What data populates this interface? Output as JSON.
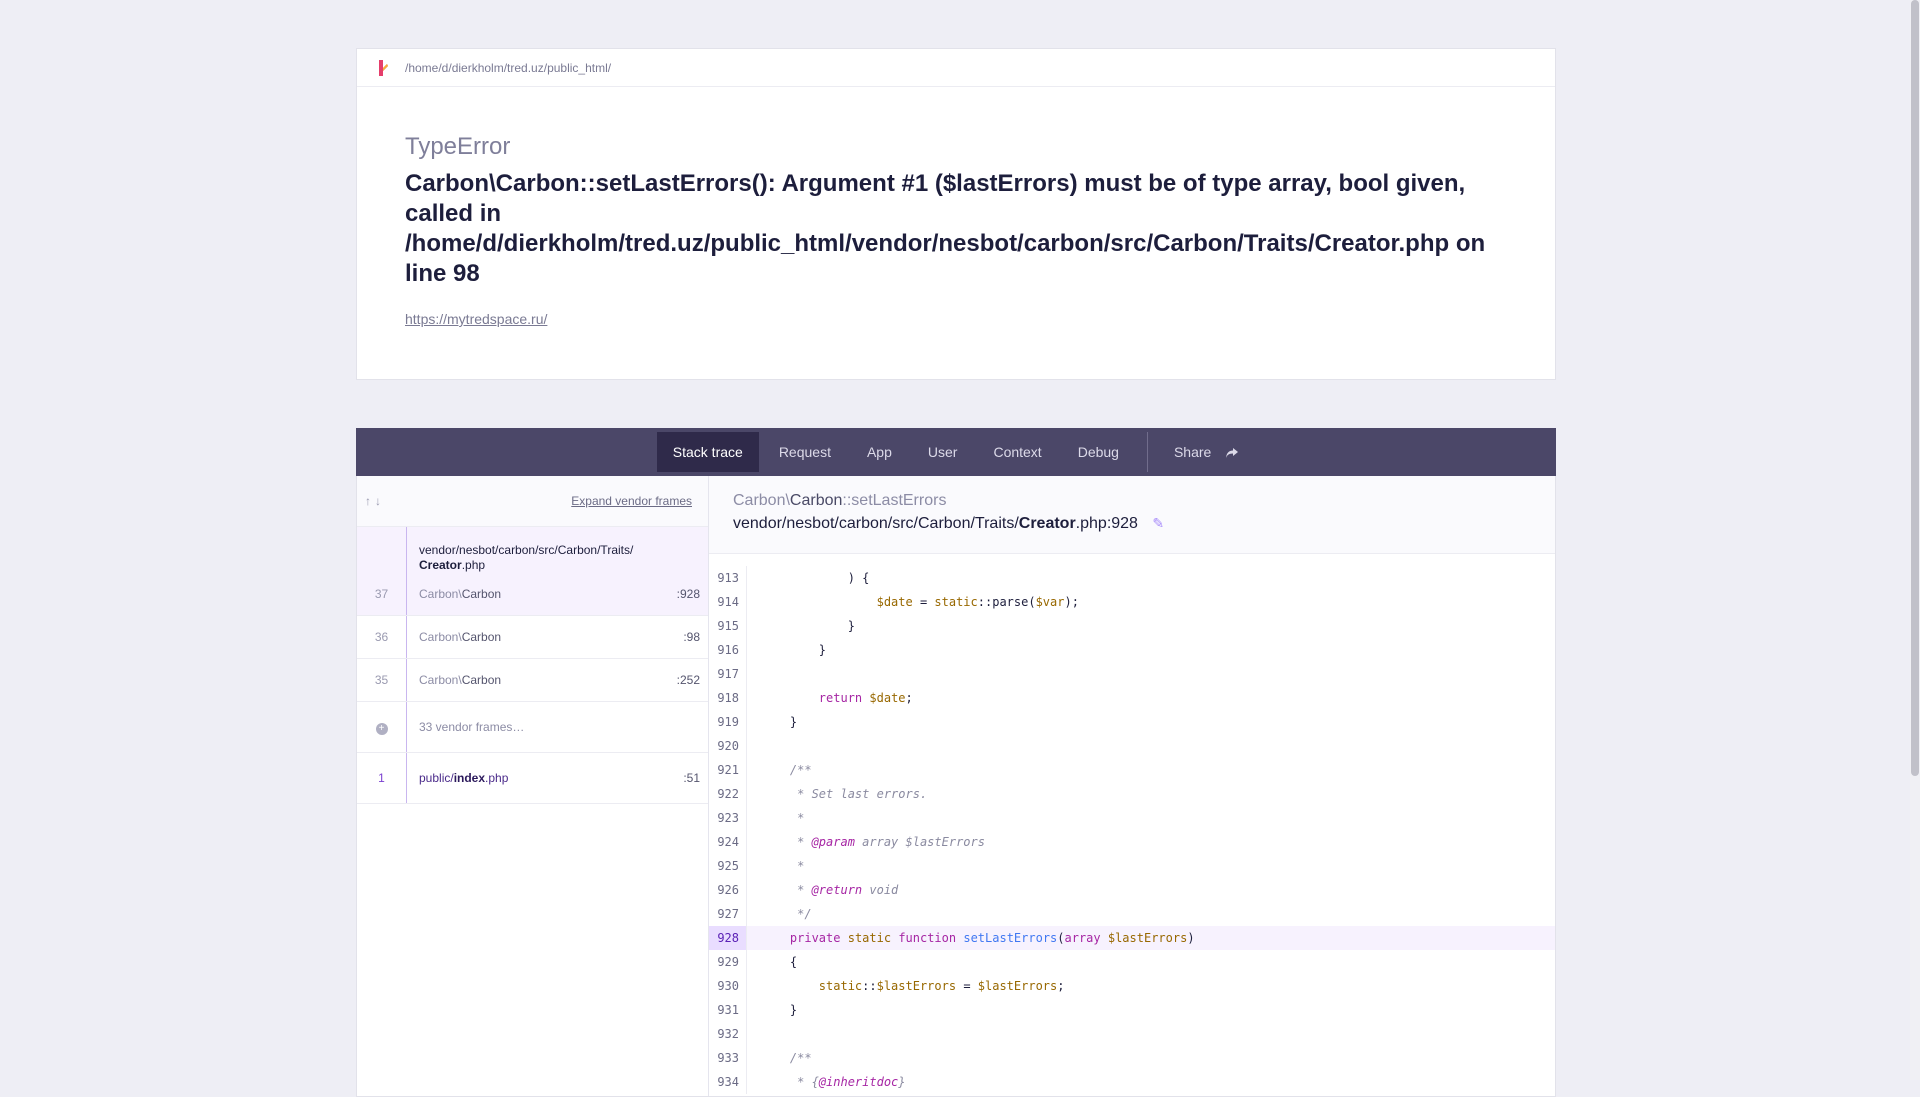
{
  "header": {
    "path": "/home/d/dierkholm/tred.uz/public_html/",
    "exception_class": "TypeError",
    "message": "Carbon\\Carbon::setLastErrors(): Argument #1 ($lastErrors) must be of type array, bool given, called in /home/d/dierkholm/tred.uz/public_html/vendor/nesbot/carbon/src/Carbon/Traits/Creator.php on line 98",
    "url": "https://mytredspace.ru/"
  },
  "tabs": {
    "stack_trace": "Stack trace",
    "request": "Request",
    "app": "App",
    "user": "User",
    "context": "Context",
    "debug": "Debug",
    "share": "Share"
  },
  "frames_panel": {
    "expand_label": "Expand vendor frames",
    "frames": [
      {
        "num": "37",
        "file_prefix": "vendor/nesbot/carbon/src/Carbon/Traits/",
        "file_name": "Creator",
        "file_ext": ".php",
        "class_prefix": "Carbon\\",
        "class_name": "Carbon",
        "line": ":928"
      },
      {
        "num": "36",
        "class_prefix": "Carbon\\",
        "class_name": "Carbon",
        "line": ":98"
      },
      {
        "num": "35",
        "class_prefix": "Carbon\\",
        "class_name": "Carbon",
        "line": ":252"
      }
    ],
    "vendor_frames_label": "33 vendor frames…",
    "app_frame": {
      "num": "1",
      "file_prefix": "public/",
      "file_name": "index",
      "file_ext": ".php",
      "line": ":51"
    }
  },
  "code_panel": {
    "class_prefix": "Carbon\\",
    "class_name": "Carbon",
    "method": "::setLastErrors",
    "file_prefix": "vendor/nesbot/carbon/src/Carbon/Traits/",
    "file_name": "Creator",
    "file_suffix": ".php:928",
    "line_numbers": [
      "913",
      "914",
      "915",
      "916",
      "917",
      "918",
      "919",
      "920",
      "921",
      "922",
      "923",
      "924",
      "925",
      "926",
      "927",
      "928",
      "929",
      "930",
      "931",
      "932",
      "933",
      "934"
    ],
    "highlighted_line": "928"
  },
  "colors": {
    "background": "#eeeef5",
    "tab_bar": "#4b4768",
    "tab_active": "#2f2a4a",
    "highlight": "#f7f2fe",
    "accent": "#7a3fd0"
  }
}
